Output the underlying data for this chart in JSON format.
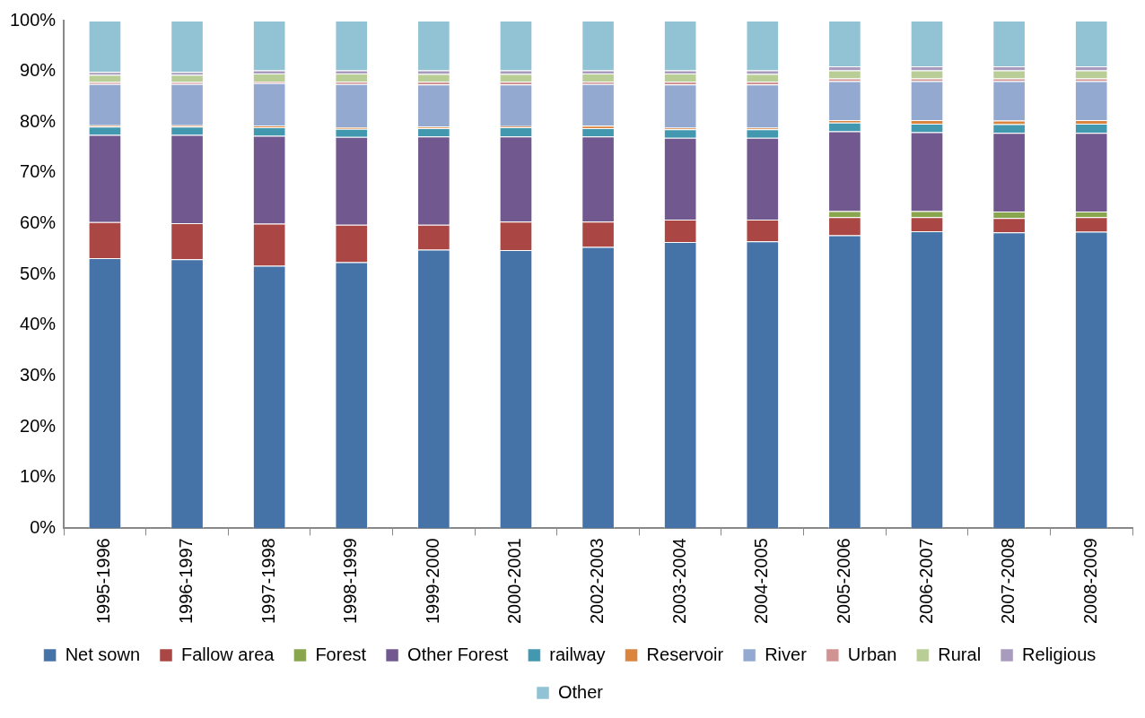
{
  "chart_data": {
    "type": "bar",
    "stacked": true,
    "grid": false,
    "legend": "bottom",
    "categories": [
      "1995-1996",
      "1996-1997",
      "1997-1998",
      "1998-1999",
      "1999-2000",
      "2000-2001",
      "2002-2003",
      "2003-2004",
      "2004-2005",
      "2005-2006",
      "2006-2007",
      "2007-2008",
      "2008-2009"
    ],
    "ylim": [
      0,
      100
    ],
    "yticks": [
      {
        "value": 0,
        "label": "0%"
      },
      {
        "value": 10,
        "label": "10%"
      },
      {
        "value": 20,
        "label": "20%"
      },
      {
        "value": 30,
        "label": "30%"
      },
      {
        "value": 40,
        "label": "40%"
      },
      {
        "value": 50,
        "label": "50%"
      },
      {
        "value": 60,
        "label": "60%"
      },
      {
        "value": 70,
        "label": "70%"
      },
      {
        "value": 80,
        "label": "80%"
      },
      {
        "value": 90,
        "label": "90%"
      },
      {
        "value": 100,
        "label": "100%"
      }
    ],
    "series": [
      {
        "name": "Net sown",
        "color": "#4572a7",
        "values": [
          53.2,
          53.0,
          51.7,
          52.4,
          54.9,
          54.8,
          55.4,
          56.4,
          56.5,
          57.7,
          58.5,
          58.3,
          58.4
        ]
      },
      {
        "name": "Fallow area",
        "color": "#aa4643",
        "values": [
          7.1,
          7.1,
          8.3,
          7.4,
          4.9,
          5.6,
          5.0,
          4.4,
          4.3,
          3.6,
          2.8,
          2.8,
          2.9
        ]
      },
      {
        "name": "Forest",
        "color": "#89a54e",
        "values": [
          0,
          0,
          0,
          0,
          0,
          0,
          0,
          0,
          0,
          1.2,
          1.2,
          1.3,
          1.1
        ]
      },
      {
        "name": "Other Forest",
        "color": "#71588f",
        "values": [
          17.2,
          17.4,
          17.3,
          17.3,
          17.4,
          16.8,
          16.8,
          16.1,
          16.1,
          15.7,
          15.5,
          15.5,
          15.5
        ]
      },
      {
        "name": "railway",
        "color": "#4198af",
        "values": [
          1.6,
          1.6,
          1.7,
          1.6,
          1.6,
          1.8,
          1.6,
          1.7,
          1.7,
          1.7,
          1.7,
          1.7,
          1.8
        ]
      },
      {
        "name": "Reservoir",
        "color": "#db843d",
        "values": [
          0.3,
          0.3,
          0.3,
          0.3,
          0.3,
          0.2,
          0.5,
          0.3,
          0.3,
          0.5,
          0.7,
          0.7,
          0.7
        ]
      },
      {
        "name": "River",
        "color": "#93a9cf",
        "values": [
          8.1,
          8.1,
          8.4,
          8.5,
          8.3,
          8.2,
          8.2,
          8.5,
          8.5,
          7.7,
          7.7,
          7.8,
          7.7
        ]
      },
      {
        "name": "Urban",
        "color": "#d19392",
        "values": [
          0.4,
          0.4,
          0.3,
          0.5,
          0.6,
          0.6,
          0.5,
          0.6,
          0.6,
          0.5,
          0.5,
          0.5,
          0.5
        ]
      },
      {
        "name": "Rural",
        "color": "#b9cd96",
        "values": [
          1.4,
          1.4,
          1.6,
          1.6,
          1.5,
          1.5,
          1.6,
          1.6,
          1.5,
          1.6,
          1.6,
          1.6,
          1.6
        ]
      },
      {
        "name": "Religious",
        "color": "#a99bbd",
        "values": [
          0.6,
          0.6,
          0.6,
          0.6,
          0.7,
          0.7,
          0.6,
          0.6,
          0.7,
          0.8,
          0.8,
          0.8,
          0.8
        ]
      },
      {
        "name": "Other",
        "color": "#92c3d4",
        "values": [
          10.1,
          10.1,
          9.8,
          9.8,
          9.8,
          9.8,
          9.8,
          9.8,
          9.8,
          9.0,
          9.0,
          9.0,
          9.0
        ]
      }
    ]
  }
}
